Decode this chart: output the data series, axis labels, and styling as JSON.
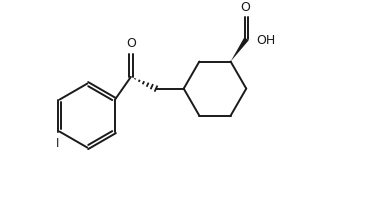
{
  "bg_color": "#ffffff",
  "line_color": "#1a1a1a",
  "line_width": 1.4,
  "fig_width": 3.7,
  "fig_height": 1.98,
  "dpi": 100,
  "xlim": [
    0.0,
    9.5
  ],
  "ylim": [
    0.3,
    5.5
  ]
}
